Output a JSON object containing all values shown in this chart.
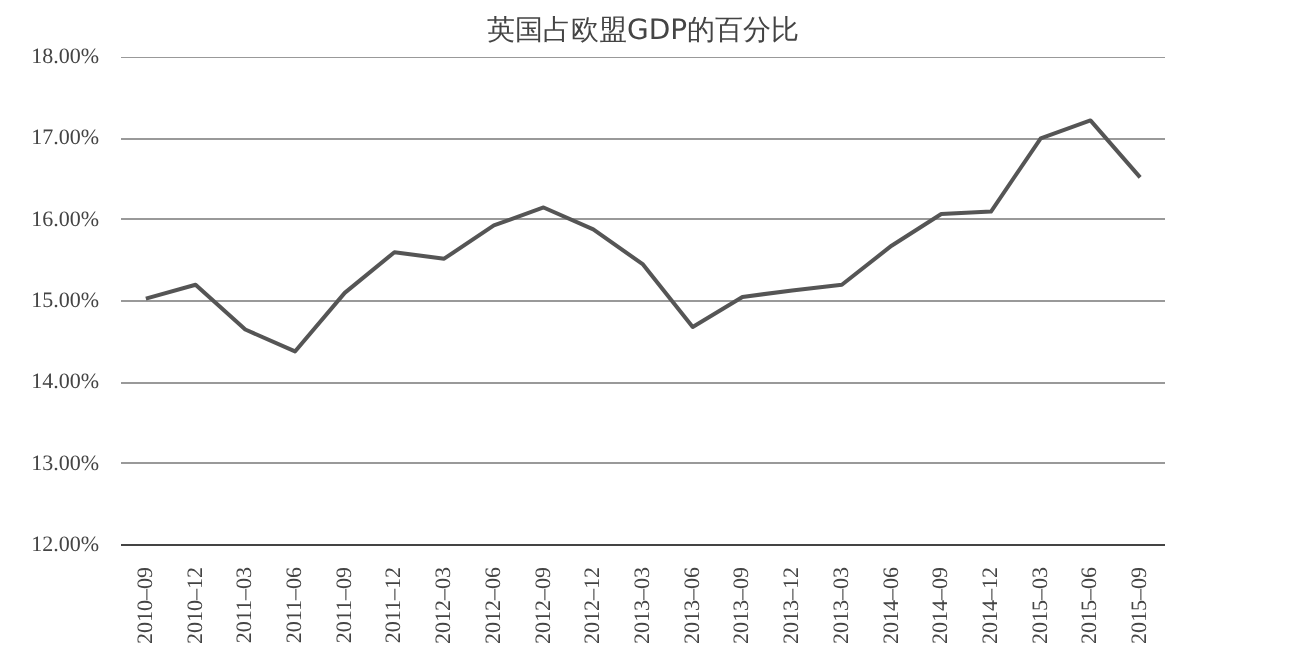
{
  "chart_data": {
    "type": "line",
    "title": "英国占欧盟GDP的百分比",
    "categories": [
      "2010–09",
      "2010–12",
      "2011–03",
      "2011–06",
      "2011–09",
      "2011–12",
      "2012–03",
      "2012–06",
      "2012–09",
      "2012–12",
      "2013–03",
      "2013–06",
      "2013–09",
      "2013–12",
      "2013–03",
      "2014–06",
      "2014–09",
      "2014–12",
      "2015–03",
      "2015–06",
      "2015–09"
    ],
    "series": [
      {
        "color": "#555555",
        "values": [
          15.03,
          15.2,
          14.65,
          14.38,
          15.1,
          15.6,
          15.52,
          15.93,
          16.15,
          15.88,
          15.45,
          14.68,
          15.05,
          15.13,
          15.2,
          15.68,
          16.07,
          16.1,
          17.0,
          17.22,
          16.52
        ]
      }
    ],
    "ylim": [
      12,
      18
    ],
    "yticks": [
      {
        "value": 12,
        "label": "12.00%"
      },
      {
        "value": 13,
        "label": "13.00%"
      },
      {
        "value": 14,
        "label": "14.00%"
      },
      {
        "value": 15,
        "label": "15.00%"
      },
      {
        "value": 16,
        "label": "16.00%"
      },
      {
        "value": 17,
        "label": "17.00%"
      },
      {
        "value": 18,
        "label": "18.00%"
      }
    ],
    "grid": "y",
    "marker": "none",
    "line_style": "solid"
  }
}
